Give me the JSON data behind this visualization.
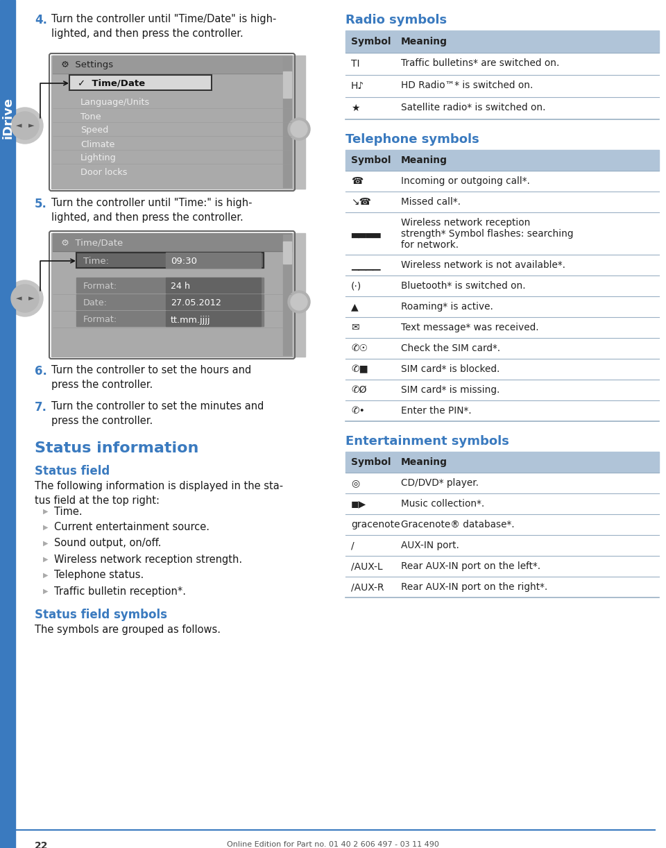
{
  "page_bg": "#ffffff",
  "blue_heading": "#3a7abf",
  "text_color": "#1a1a1a",
  "table_header_bg": "#b0c4d8",
  "table_row_divider": "#9ab0c4",
  "sidebar_blue": "#3a7abf",
  "page_number": "22",
  "footer_text": "Online Edition for Part no. 01 40 2 606 497 - 03 11 490",
  "idrive_text": "iDrive",
  "step4_num": "4.",
  "step4_text": "Turn the controller until \"Time/Date\" is high-\nlighted, and then press the controller.",
  "step5_num": "5.",
  "step5_text": "Turn the controller until \"Time:\" is high-\nlighted, and then press the controller.",
  "step6_num": "6.",
  "step6_text": "Turn the controller to set the hours and\npress the controller.",
  "step7_num": "7.",
  "step7_text": "Turn the controller to set the minutes and\npress the controller.",
  "status_info_heading": "Status information",
  "status_field_heading": "Status field",
  "status_field_body": "The following information is displayed in the sta-\ntus field at the top right:",
  "bullets": [
    "Time.",
    "Current entertainment source.",
    "Sound output, on/off.",
    "Wireless network reception strength.",
    "Telephone status.",
    "Traffic bulletin reception*."
  ],
  "status_field_symbols_heading": "Status field symbols",
  "status_field_symbols_body": "The symbols are grouped as follows.",
  "radio_heading": "Radio symbols",
  "radio_headers": [
    "Symbol",
    "Meaning"
  ],
  "radio_rows": [
    [
      "TI",
      "Traffic bulletins* are switched on."
    ],
    [
      "H♪",
      "HD Radio™* is switched on."
    ],
    [
      "★",
      "Satellite radio* is switched on."
    ]
  ],
  "tel_heading": "Telephone symbols",
  "tel_headers": [
    "Symbol",
    "Meaning"
  ],
  "tel_rows": [
    [
      "☎",
      "Incoming or outgoing call*."
    ],
    [
      "↘☎",
      "Missed call*."
    ],
    [
      "▄▄▄▄",
      "Wireless network reception\nstrength* Symbol flashes: searching\nfor network."
    ],
    [
      "▁▁▁▁",
      "Wireless network is not available*."
    ],
    [
      "(·)",
      "Bluetooth* is switched on."
    ],
    [
      "▲",
      "Roaming* is active."
    ],
    [
      "✉",
      "Text message* was received."
    ],
    [
      "✆☉",
      "Check the SIM card*."
    ],
    [
      "✆■",
      "SIM card* is blocked."
    ],
    [
      "✆Ø",
      "SIM card* is missing."
    ],
    [
      "✆•",
      "Enter the PIN*."
    ]
  ],
  "ent_heading": "Entertainment symbols",
  "ent_headers": [
    "Symbol",
    "Meaning"
  ],
  "ent_rows": [
    [
      "◎",
      "CD/DVD* player."
    ],
    [
      "◼▶",
      "Music collection*."
    ],
    [
      "gracenote",
      "Gracenote® database*."
    ],
    [
      "/",
      "AUX-IN port."
    ],
    [
      "/AUX-L",
      "Rear AUX-IN port on the left*."
    ],
    [
      "/AUX-R",
      "Rear AUX-IN port on the right*."
    ]
  ]
}
